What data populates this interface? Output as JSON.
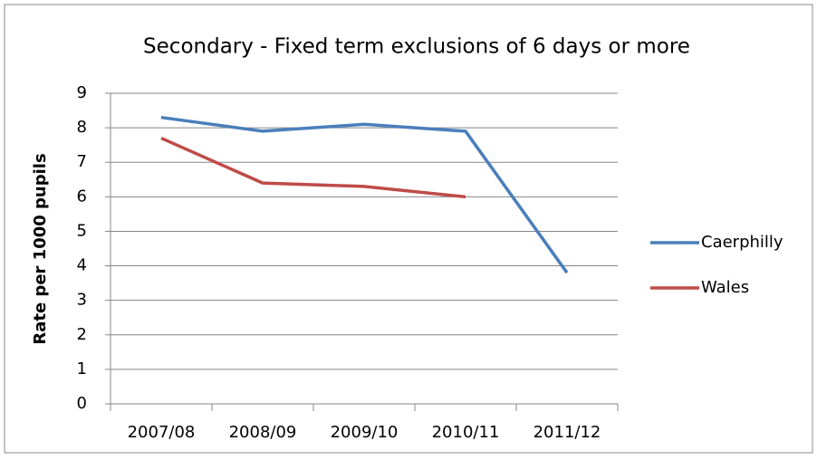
{
  "chart_data": {
    "type": "line",
    "title": "Secondary - Fixed term exclusions of 6 days or more",
    "y_label": "Rate per 1000 pupils",
    "categories": [
      "2007/08",
      "2008/09",
      "2009/10",
      "2010/11",
      "2011/12"
    ],
    "series": [
      {
        "name": "Caerphilly",
        "color": "#4a7ebb",
        "values": [
          8.3,
          7.9,
          8.1,
          7.9,
          3.8
        ]
      },
      {
        "name": "Wales",
        "color": "#be4b48",
        "values": [
          7.7,
          6.4,
          6.3,
          6.0,
          null
        ]
      }
    ],
    "ylim": [
      0,
      9
    ],
    "yticks": [
      0,
      1,
      2,
      3,
      4,
      5,
      6,
      7,
      8,
      9
    ],
    "grid": true,
    "legend": "right"
  }
}
